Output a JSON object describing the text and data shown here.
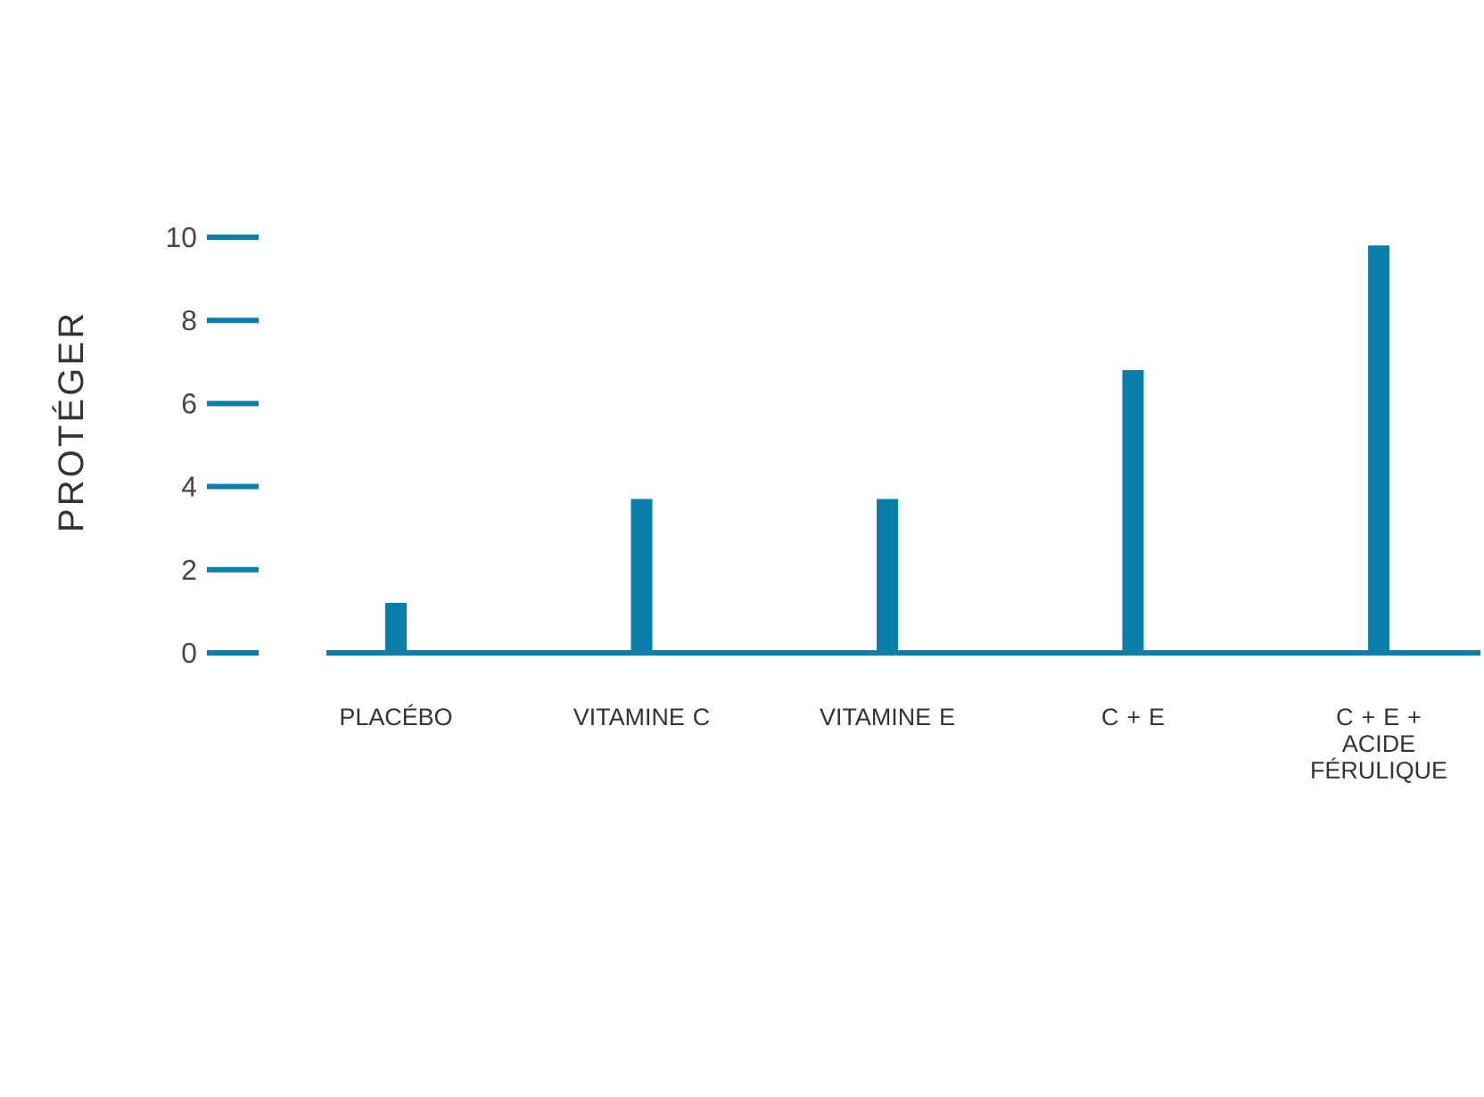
{
  "chart_data": {
    "type": "bar",
    "ylabel": "PROTÉGER",
    "categories": [
      "PLACÉBO",
      "VITAMINE C",
      "VITAMINE E",
      "C + E",
      "C + E + ACIDE FÉRULIQUE"
    ],
    "values": [
      1.2,
      3.7,
      3.7,
      6.8,
      9.8
    ],
    "color": "#0b7eab",
    "ylim": [
      0,
      10
    ],
    "yticks": [
      0,
      2,
      4,
      6,
      8,
      10
    ]
  }
}
